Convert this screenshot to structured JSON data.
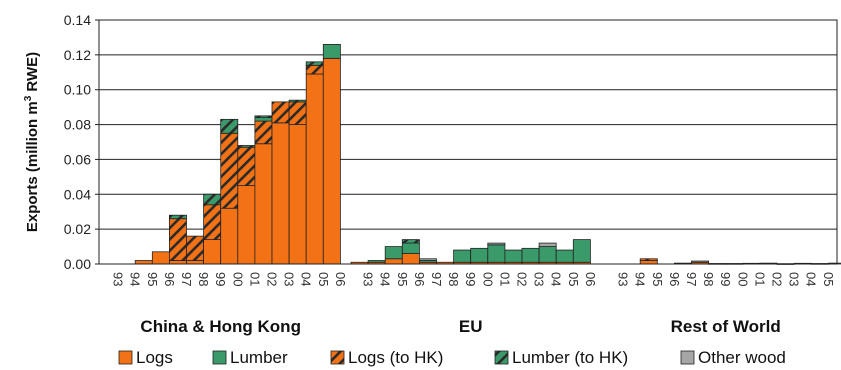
{
  "chart_data": {
    "type": "bar",
    "stacked": true,
    "ylabel_main": "Exports (million m",
    "ylabel_sup": "3",
    "ylabel_tail": " RWE)",
    "ylim": [
      0,
      0.14
    ],
    "yticks": [
      "0.00",
      "0.02",
      "0.04",
      "0.06",
      "0.08",
      "0.10",
      "0.12",
      "0.14"
    ],
    "grid": true,
    "legend_placement": "bottom",
    "colors": {
      "Logs": "#f47216",
      "Lumber": "#3a9a6a",
      "Logs (to HK)": "#f47216",
      "Lumber (to HK)": "#3a9a6a",
      "Other wood": "#a6a6a6"
    },
    "legend": [
      "Logs",
      "Lumber",
      "Logs (to HK)",
      "Lumber (to HK)",
      "Other wood"
    ],
    "series_order": [
      "Logs",
      "Logs (to HK)",
      "Lumber",
      "Lumber (to HK)",
      "Other wood"
    ],
    "years": [
      "93",
      "94",
      "95",
      "96",
      "97",
      "98",
      "99",
      "00",
      "01",
      "02",
      "03",
      "04",
      "05",
      "06"
    ],
    "groups": [
      {
        "name": "China & Hong Kong",
        "values": {
          "Logs": [
            0,
            0,
            0.002,
            0.007,
            0.002,
            0.002,
            0.014,
            0.032,
            0.045,
            0.069,
            0.081,
            0.08,
            0.109,
            0.118
          ],
          "Logs (to HK)": [
            0,
            0,
            0,
            0,
            0.024,
            0.014,
            0.02,
            0.043,
            0.022,
            0.013,
            0.012,
            0.013,
            0.005,
            0
          ],
          "Lumber": [
            0,
            0,
            0,
            0,
            0,
            0,
            0,
            0,
            0,
            0.002,
            0,
            0,
            0,
            0.008
          ],
          "Lumber (to HK)": [
            0,
            0,
            0,
            0,
            0.002,
            0,
            0.006,
            0.008,
            0.001,
            0.001,
            0,
            0.001,
            0.002,
            0
          ],
          "Other wood": [
            0,
            0,
            0,
            0,
            0,
            0,
            0,
            0,
            0,
            0,
            0,
            0,
            0,
            0
          ]
        }
      },
      {
        "name": "EU",
        "values": {
          "Logs": [
            0.001,
            0.001,
            0.003,
            0.006,
            0.001,
            0.001,
            0.001,
            0.001,
            0.001,
            0.001,
            0.001,
            0.001,
            0.001,
            0.001
          ],
          "Logs (to HK)": [
            0,
            0,
            0,
            0,
            0,
            0,
            0,
            0,
            0,
            0,
            0,
            0,
            0,
            0
          ],
          "Lumber": [
            0,
            0.001,
            0.007,
            0.006,
            0.001,
            0,
            0.007,
            0.008,
            0.01,
            0.007,
            0.008,
            0.009,
            0.007,
            0.013
          ],
          "Lumber (to HK)": [
            0,
            0,
            0,
            0.002,
            0,
            0,
            0,
            0,
            0,
            0,
            0,
            0,
            0,
            0
          ],
          "Other wood": [
            0,
            0,
            0,
            0,
            0.001,
            0,
            0,
            0,
            0.001,
            0,
            0,
            0.002,
            0,
            0
          ]
        }
      },
      {
        "name": "Rest of World",
        "values": {
          "Logs": [
            0,
            0,
            0.002,
            0,
            0,
            0.001,
            0,
            0,
            0,
            0,
            0,
            0,
            0,
            0
          ],
          "Logs (to HK)": [
            0,
            0,
            0.001,
            0,
            0,
            0,
            0,
            0,
            0,
            0,
            0,
            0,
            0,
            0
          ],
          "Lumber": [
            0,
            0,
            0,
            0,
            0,
            0,
            0,
            0,
            0,
            0,
            0,
            0,
            0,
            0
          ],
          "Lumber (to HK)": [
            0,
            0,
            0,
            0,
            0,
            0,
            0,
            0,
            0,
            0,
            0,
            0,
            0,
            0
          ],
          "Other wood": [
            0,
            0,
            0,
            0,
            0.0005,
            0.0007,
            0.0003,
            0.0003,
            0.0004,
            0.0005,
            0.0002,
            0.0004,
            0.0003,
            0.0005
          ]
        }
      }
    ]
  }
}
